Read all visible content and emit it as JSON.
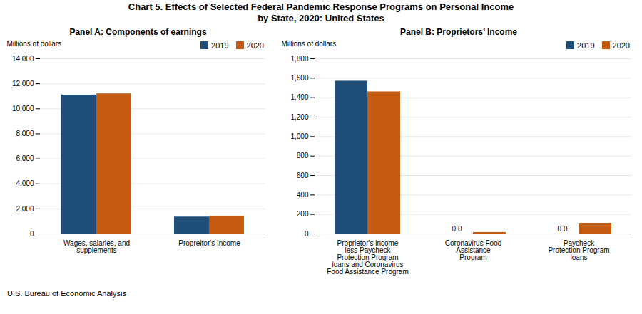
{
  "title": "Chart 5. Effects of Selected Federal Pandemic Response Programs on Personal Income\nby State, 2020: United States",
  "caption": "U.S. Bureau of Economic Analysis",
  "chart_data": [
    {
      "type": "bar",
      "title": "Panel A: Components of earnings",
      "ylabel": "Millions of dollars",
      "categories": [
        "Wages, salaries, and\nsupplements",
        "Propreitor's Income"
      ],
      "series": [
        {
          "name": "2019",
          "color": "#1F4E79",
          "values": [
            11100,
            1350
          ]
        },
        {
          "name": "2020",
          "color": "#C55A11",
          "values": [
            11200,
            1400
          ]
        }
      ],
      "ylim": [
        0,
        14000
      ],
      "yticks": [
        0,
        {
          "value": 2000,
          "label": "2,000"
        },
        {
          "value": 4000,
          "label": "4,000"
        },
        {
          "value": 6000,
          "label": "6,000"
        },
        {
          "value": 8000,
          "label": "8,000"
        },
        {
          "value": 10000,
          "label": "10,000"
        },
        {
          "value": 12000,
          "label": "12,000"
        },
        {
          "value": 14000,
          "label": "14,000"
        }
      ],
      "grid": true,
      "legend": "upper right"
    },
    {
      "type": "bar",
      "title": "Panel B: Proprietors’ Income",
      "ylabel": "Millions of dollars",
      "categories": [
        "Proprietor's income\nless Paycheck\nProtection Program\nloans and Coronavirus\nFood Assistance Program",
        "Coronavirus Food\nAssistance\nProgram",
        "Paycheck\nProtection Program\nloans"
      ],
      "series": [
        {
          "name": "2019",
          "color": "#1F4E79",
          "values": [
            1570,
            0.0,
            0.0
          ],
          "value_labels": [
            null,
            "0.0",
            "0.0"
          ]
        },
        {
          "name": "2020",
          "color": "#C55A11",
          "values": [
            1460,
            15,
            110
          ]
        }
      ],
      "ylim": [
        0,
        1800
      ],
      "yticks": [
        0,
        200,
        400,
        600,
        800,
        {
          "value": 1000,
          "label": "1,000"
        },
        {
          "value": 1200,
          "label": "1,200"
        },
        {
          "value": 1400,
          "label": "1,400"
        },
        {
          "value": 1600,
          "label": "1,600"
        },
        {
          "value": 1800,
          "label": "1,800"
        }
      ],
      "grid": true,
      "legend": "upper right"
    }
  ]
}
